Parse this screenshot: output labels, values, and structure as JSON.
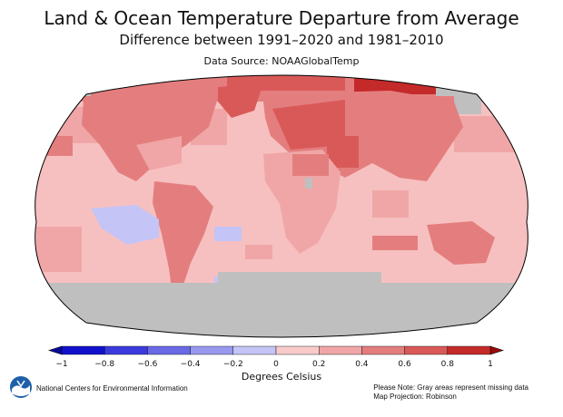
{
  "title": "Land & Ocean Temperature Departure from Average",
  "subtitle": "Difference between 1991–2020 and 1981–2010",
  "source": "Data Source: NOAAGlobalTemp",
  "colorbar": {
    "min": -1,
    "max": 1,
    "ticks": [
      "−1",
      "−0.8",
      "−0.6",
      "−0.4",
      "−0.2",
      "0",
      "0.2",
      "0.4",
      "0.6",
      "0.8",
      "1"
    ],
    "colors": [
      "#1111cc",
      "#3b3bdd",
      "#6a6ae6",
      "#9898ee",
      "#c4c4f6",
      "#f8caca",
      "#f0a6a6",
      "#e47e7e",
      "#d95959",
      "#c42a2a"
    ],
    "units": "Degrees Celsius"
  },
  "map": {
    "projection": "Robinson",
    "ocean_color": "#f7c0c0",
    "missing_color": "#bfbfbf",
    "land_color": "#f0a6a6"
  },
  "footer": {
    "left": "National Centers for Environmental Information",
    "note": "Please Note: Gray areas represent missing data",
    "projection_label": "Map Projection: Robinson"
  },
  "logo": {
    "icon": "noaa-logo-icon",
    "label": "NOAA"
  }
}
